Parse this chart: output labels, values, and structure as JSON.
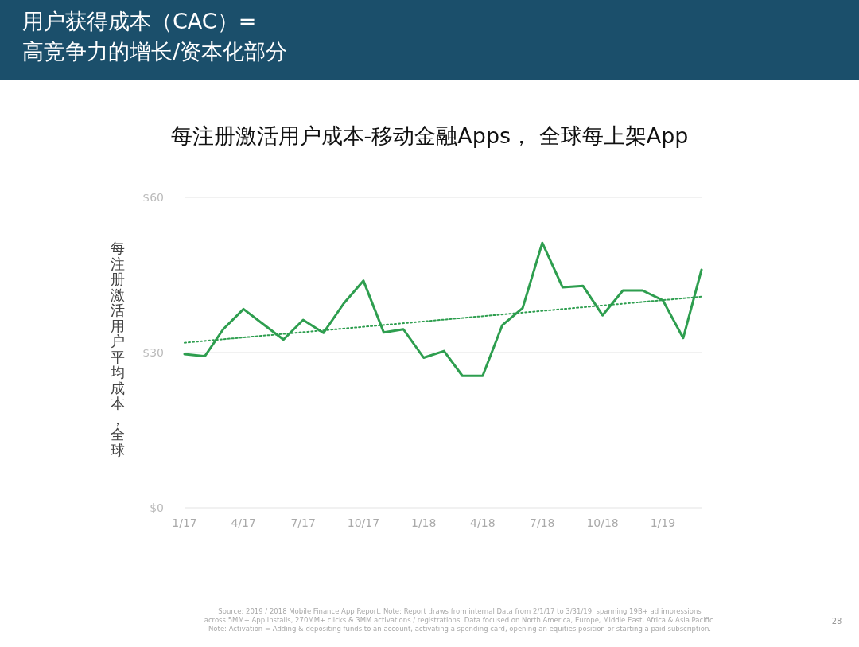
{
  "chart_data": {
    "type": "line",
    "title": "用户获得成本（CAC）=\n高竞争力的增长/资本化部分",
    "subtitle": "每注册激活用户成本-移动金融Apps， 全球每上架App",
    "ylabel": "每注册激活用户平均成本，全球",
    "x": [
      "2017-01",
      "2017-02",
      "2017-03",
      "2017-04",
      "2017-05",
      "2017-06",
      "2017-07",
      "2017-08",
      "2017-09",
      "2017-10",
      "2017-11",
      "2017-12",
      "2018-01",
      "2018-02",
      "2018-03",
      "2018-04",
      "2018-05",
      "2018-06",
      "2018-07",
      "2018-08",
      "2018-09",
      "2018-10",
      "2018-11",
      "2018-12",
      "2019-01",
      "2019-02",
      "2019-03"
    ],
    "series": [
      {
        "color": "#2e9e4f",
        "line_style": "solid",
        "values": [
          29.7,
          29.3,
          34.5,
          38.4,
          35.5,
          32.5,
          36.3,
          33.8,
          39.5,
          43.9,
          33.9,
          34.5,
          29.0,
          30.3,
          25.5,
          25.5,
          35.3,
          38.6,
          51.2,
          42.6,
          42.9,
          37.2,
          42.0,
          42.0,
          40.1,
          32.8,
          46.0
        ]
      },
      {
        "color": "#2e9e4f",
        "line_style": "dotted",
        "x": [
          "2017-01",
          "2019-03"
        ],
        "values": [
          31.9,
          40.8
        ]
      }
    ],
    "xlim": [
      "2017-01",
      "2019-03"
    ],
    "xticks": [
      {
        "value": "2017-01",
        "label": "1/17"
      },
      {
        "value": "2017-04",
        "label": "4/17"
      },
      {
        "value": "2017-07",
        "label": "7/17"
      },
      {
        "value": "2017-10",
        "label": "10/17"
      },
      {
        "value": "2018-01",
        "label": "1/18"
      },
      {
        "value": "2018-04",
        "label": "4/18"
      },
      {
        "value": "2018-07",
        "label": "7/18"
      },
      {
        "value": "2018-10",
        "label": "10/18"
      },
      {
        "value": "2019-01",
        "label": "1/19"
      }
    ],
    "ylim": [
      0,
      60
    ],
    "yticks": [
      {
        "value": 0,
        "label": "$0"
      },
      {
        "value": 30,
        "label": "$30"
      },
      {
        "value": 60,
        "label": "$60"
      }
    ],
    "grid": "y",
    "marker": "none",
    "annotations": [
      "Source: 2019 / 2018 Mobile Finance App Report. Note: Report draws from internal Data from 2/1/17 to 3/31/19, spanning 19B+ ad impressions",
      "across 5MM+ App installs, 270MM+ clicks & 3MM activations / registrations. Data focused on North America, Europe, Middle East, Africa & Asia Pacific.",
      "Note: Activation = Adding & depositing funds to an account, activating a spending card, opening an equities position or starting a paid subscription.",
      "28"
    ]
  }
}
